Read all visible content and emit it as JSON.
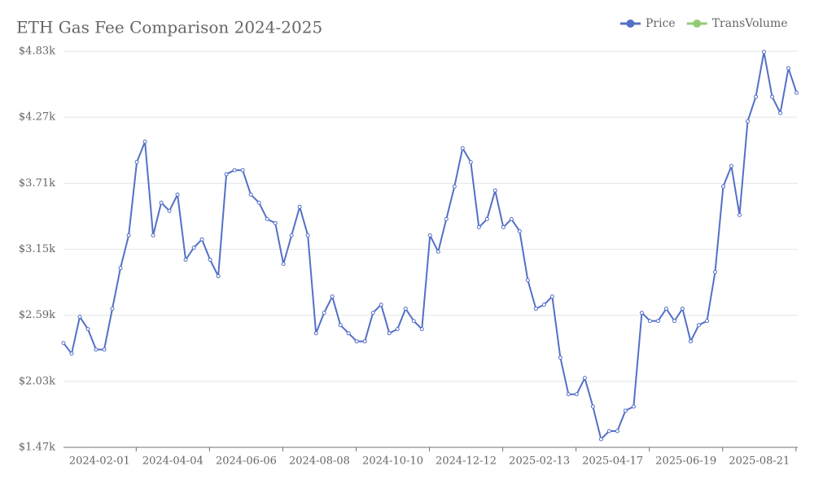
{
  "chart_data": {
    "type": "line",
    "title": "ETH Gas Fee Comparison 2024-2025",
    "x": [
      "2024-01-01",
      "2024-01-08",
      "2024-01-15",
      "2024-01-22",
      "2024-01-29",
      "2024-02-05",
      "2024-02-12",
      "2024-02-19",
      "2024-02-26",
      "2024-03-04",
      "2024-03-11",
      "2024-03-18",
      "2024-03-25",
      "2024-04-01",
      "2024-04-08",
      "2024-04-15",
      "2024-04-22",
      "2024-04-29",
      "2024-05-06",
      "2024-05-13",
      "2024-05-20",
      "2024-05-27",
      "2024-06-03",
      "2024-06-10",
      "2024-06-17",
      "2024-06-24",
      "2024-07-01",
      "2024-07-08",
      "2024-07-15",
      "2024-07-22",
      "2024-07-29",
      "2024-08-05",
      "2024-08-12",
      "2024-08-19",
      "2024-08-26",
      "2024-09-02",
      "2024-09-09",
      "2024-09-16",
      "2024-09-23",
      "2024-09-30",
      "2024-10-07",
      "2024-10-14",
      "2024-10-21",
      "2024-10-28",
      "2024-11-04",
      "2024-11-11",
      "2024-11-18",
      "2024-11-25",
      "2024-12-02",
      "2024-12-09",
      "2024-12-16",
      "2024-12-23",
      "2024-12-30",
      "2025-01-06",
      "2025-01-13",
      "2025-01-20",
      "2025-01-27",
      "2025-02-03",
      "2025-02-10",
      "2025-02-17",
      "2025-02-24",
      "2025-03-03",
      "2025-03-10",
      "2025-03-17",
      "2025-03-24",
      "2025-03-31",
      "2025-04-07",
      "2025-04-14",
      "2025-04-21",
      "2025-04-28",
      "2025-05-05",
      "2025-05-12",
      "2025-05-19",
      "2025-05-26",
      "2025-06-02",
      "2025-06-09",
      "2025-06-16",
      "2025-06-23",
      "2025-06-30",
      "2025-07-07",
      "2025-07-14",
      "2025-07-21",
      "2025-07-28",
      "2025-08-04",
      "2025-08-11",
      "2025-08-18",
      "2025-08-25",
      "2025-09-01",
      "2025-09-08",
      "2025-09-15",
      "2025-09-22"
    ],
    "series": [
      {
        "name": "Price",
        "color": "#5470c6",
        "values": [
          2355,
          2265,
          2577,
          2473,
          2300,
          2300,
          2646,
          2991,
          3268,
          3890,
          4063,
          3268,
          3545,
          3476,
          3614,
          3061,
          3164,
          3234,
          3061,
          2922,
          3787,
          3821,
          3821,
          3614,
          3545,
          3406,
          3372,
          3026,
          3268,
          3510,
          3268,
          2438,
          2611,
          2749,
          2507,
          2438,
          2369,
          2369,
          2611,
          2680,
          2438,
          2473,
          2646,
          2542,
          2473,
          3268,
          3130,
          3406,
          3683,
          4008,
          3890,
          3337,
          3406,
          3649,
          3337,
          3406,
          3303,
          2888,
          2646,
          2680,
          2749,
          2231,
          1920,
          1920,
          2058,
          1816,
          1539,
          1608,
          1608,
          1781,
          1816,
          2611,
          2542,
          2542,
          2646,
          2542,
          2646,
          2369,
          2507,
          2542,
          2957,
          3683,
          3856,
          3441,
          4236,
          4444,
          4824,
          4444,
          4306,
          4686,
          4478
        ]
      },
      {
        "name": "TransVolume",
        "color": "#91cc75",
        "values": [
          null,
          null,
          null,
          null,
          null,
          null,
          null,
          null,
          null,
          null,
          null,
          null,
          null,
          null,
          null,
          null,
          null,
          null,
          null,
          null,
          null,
          null,
          null,
          null,
          null,
          null,
          null,
          null,
          null,
          null,
          null,
          null,
          null,
          null,
          null,
          null,
          null,
          null,
          null,
          null,
          null,
          null,
          null,
          null,
          null,
          null,
          null,
          null,
          null,
          null,
          null,
          null,
          null,
          null,
          null,
          null,
          null,
          null,
          null,
          null,
          null,
          null,
          null,
          null,
          null,
          null,
          null,
          null,
          null,
          null,
          null,
          null,
          null,
          null,
          null,
          null,
          null,
          null,
          null,
          null,
          null,
          null,
          null,
          null,
          null,
          null,
          null,
          null,
          null,
          null,
          null
        ]
      }
    ],
    "xlim": [
      "2024-01-01",
      "2025-09-23"
    ],
    "xticks": [
      "2024-02-01",
      "2024-04-04",
      "2024-06-06",
      "2024-08-08",
      "2024-10-10",
      "2024-12-12",
      "2025-02-13",
      "2025-04-17",
      "2025-06-19",
      "2025-08-21"
    ],
    "ylim": [
      1470,
      4830
    ],
    "yticks": [
      {
        "value": 1470,
        "label": "$1.47k"
      },
      {
        "value": 2030,
        "label": "$2.03k"
      },
      {
        "value": 2590,
        "label": "$2.59k"
      },
      {
        "value": 3150,
        "label": "$3.15k"
      },
      {
        "value": 3710,
        "label": "$3.71k"
      },
      {
        "value": 4270,
        "label": "$4.27k"
      },
      {
        "value": 4830,
        "label": "$4.83k"
      }
    ],
    "grid": true,
    "legend": "top-right"
  }
}
